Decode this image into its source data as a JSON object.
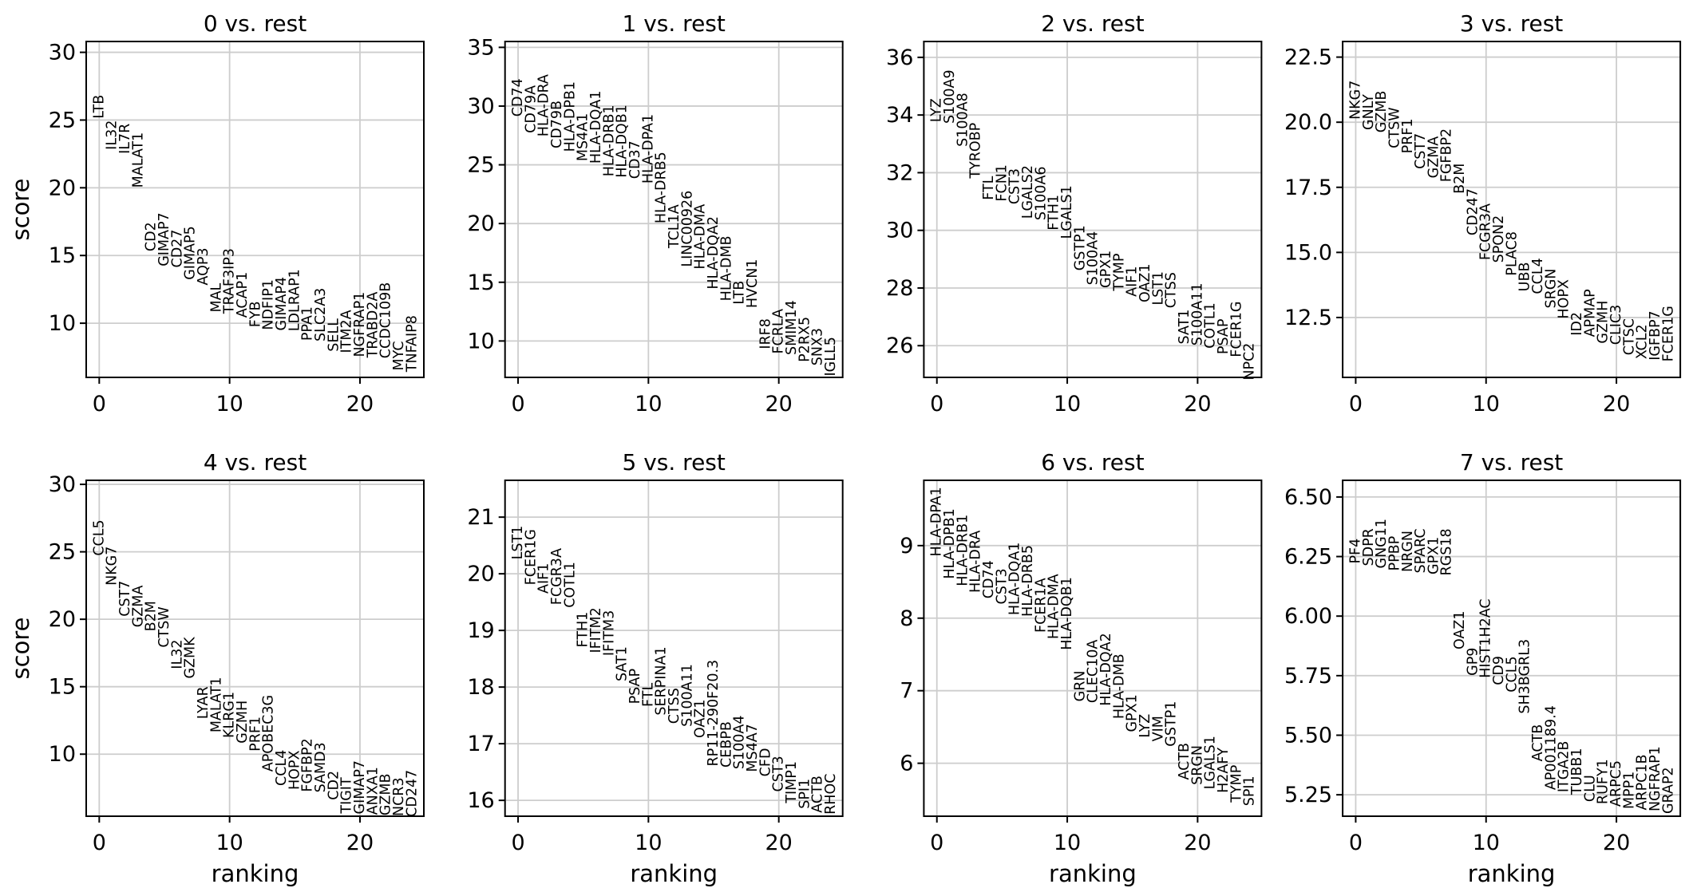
{
  "figure": {
    "xlabel": "ranking",
    "ylabel": "score",
    "background": "#ffffff",
    "grid_color": "#cdcdcd",
    "spine_color": "#000000",
    "text_color": "#000000"
  },
  "chart_data": [
    {
      "type": "scatter",
      "title": "0 vs. rest",
      "xlabel": "",
      "ylabel": "score",
      "xlim": [
        -1.0,
        24.9
      ],
      "ylim": [
        6.0,
        30.8
      ],
      "xticks": [
        0,
        10,
        20
      ],
      "xtick_labels": [
        "0",
        "10",
        "20"
      ],
      "ytick_values": [
        10,
        15,
        20,
        25,
        30
      ],
      "ytick_labels": [
        "10",
        "15",
        "20",
        "25",
        "30"
      ],
      "grid": true,
      "x_is_ranking": true,
      "gene_names": [
        "LTB",
        "IL32",
        "IL7R",
        "MALAT1",
        "CD2",
        "GIMAP7",
        "CD27",
        "GIMAP5",
        "AQP3",
        "MAL",
        "TRAF3IP3",
        "ACAP1",
        "FYB",
        "NDFIP1",
        "GIMAP4",
        "LDLRAP1",
        "PPA1",
        "SLC2A3",
        "SELL",
        "ITM2A",
        "NGFRAP1",
        "TRABD2A",
        "CCDC109B",
        "MYC",
        "TNFAIP8"
      ],
      "scores": [
        25.1,
        22.8,
        22.5,
        20.0,
        15.3,
        14.2,
        14.1,
        13.2,
        12.8,
        10.8,
        10.7,
        10.4,
        9.7,
        9.5,
        9.45,
        9.4,
        8.7,
        8.65,
        7.9,
        7.8,
        7.5,
        7.45,
        7.4,
        6.5,
        6.4
      ]
    },
    {
      "type": "scatter",
      "title": "1 vs. rest",
      "xlabel": "",
      "ylabel": "",
      "xlim": [
        -1.0,
        24.9
      ],
      "ylim": [
        6.9,
        35.5
      ],
      "xticks": [
        0,
        10,
        20
      ],
      "xtick_labels": [
        "0",
        "10",
        "20"
      ],
      "ytick_values": [
        10,
        15,
        20,
        25,
        30,
        35
      ],
      "ytick_labels": [
        "10",
        "15",
        "20",
        "25",
        "30",
        "35"
      ],
      "grid": true,
      "x_is_ranking": true,
      "gene_names": [
        "CD74",
        "CD79A",
        "HLA-DRA",
        "CD79B",
        "HLA-DPB1",
        "MS4A1",
        "HLA-DQA1",
        "HLA-DRB1",
        "HLA-DQB1",
        "CD37",
        "HLA-DPA1",
        "HLA-DRB5",
        "TCL1A",
        "LINC00926",
        "HLA-DMA",
        "HLA-DQA2",
        "HLA-DMB",
        "LTB",
        "HVCN1",
        "IRF8",
        "FCRLA",
        "SMIM14",
        "P2RX5",
        "SNX3",
        "IGLL5"
      ],
      "scores": [
        29.1,
        27.7,
        27.4,
        26.4,
        26.1,
        25.3,
        25.1,
        24.0,
        23.9,
        23.8,
        23.4,
        20.0,
        17.9,
        16.3,
        16.1,
        14.4,
        13.4,
        13.1,
        12.8,
        9.3,
        8.9,
        8.8,
        8.2,
        7.9,
        7.0
      ]
    },
    {
      "type": "scatter",
      "title": "2 vs. rest",
      "xlabel": "",
      "ylabel": "",
      "xlim": [
        -1.0,
        24.9
      ],
      "ylim": [
        24.9,
        36.55
      ],
      "xticks": [
        0,
        10,
        20
      ],
      "xtick_labels": [
        "0",
        "10",
        "20"
      ],
      "ytick_values": [
        26,
        28,
        30,
        32,
        34,
        36
      ],
      "ytick_labels": [
        "26",
        "28",
        "30",
        "32",
        "34",
        "36"
      ],
      "grid": true,
      "x_is_ranking": true,
      "gene_names": [
        "LYZ",
        "S100A9",
        "S100A8",
        "TYROBP",
        "FTL",
        "FCN1",
        "CST3",
        "LGALS2",
        "S100A6",
        "FTH1",
        "LGALS1",
        "GSTP1",
        "S100A4",
        "GPX1",
        "TYMP",
        "AIF1",
        "OAZ1",
        "LST1",
        "CTSS",
        "SAT1",
        "S100A11",
        "COTL1",
        "PSAP",
        "FCER1G",
        "NPC2"
      ],
      "scores": [
        33.75,
        33.7,
        32.9,
        31.8,
        31.05,
        31.0,
        30.9,
        30.4,
        30.35,
        30.0,
        29.7,
        28.6,
        28.1,
        28.0,
        27.9,
        27.7,
        27.5,
        27.4,
        27.3,
        26.05,
        26.0,
        25.9,
        25.7,
        25.6,
        24.8
      ]
    },
    {
      "type": "scatter",
      "title": "3 vs. rest",
      "xlabel": "",
      "ylabel": "",
      "xlim": [
        -1.0,
        24.9
      ],
      "ylim": [
        10.2,
        23.1
      ],
      "xticks": [
        0,
        10,
        20
      ],
      "xtick_labels": [
        "0",
        "10",
        "20"
      ],
      "ytick_values": [
        12.5,
        15.0,
        17.5,
        20.0,
        22.5
      ],
      "ytick_labels": [
        "12.5",
        "15.0",
        "17.5",
        "20.0",
        "22.5"
      ],
      "grid": true,
      "x_is_ranking": true,
      "gene_names": [
        "NKG7",
        "GNLY",
        "GZMB",
        "CTSW",
        "PRF1",
        "CST7",
        "GZMA",
        "FGFBP2",
        "B2M",
        "CD247",
        "FCGR3A",
        "SPON2",
        "PLAC8",
        "UBB",
        "CCL4",
        "SRGN",
        "HOPX",
        "ID2",
        "APMAP",
        "GZMH",
        "CLIC3",
        "CTSC",
        "XCL2",
        "IGFBP7",
        "FCER1G"
      ],
      "scores": [
        20.1,
        19.7,
        19.6,
        19.0,
        18.8,
        18.2,
        17.85,
        17.7,
        17.25,
        15.65,
        14.7,
        14.6,
        14.1,
        13.5,
        13.4,
        12.85,
        12.45,
        11.8,
        11.75,
        11.5,
        11.45,
        11.05,
        10.9,
        10.85,
        10.8
      ]
    },
    {
      "type": "scatter",
      "title": "4 vs. rest",
      "xlabel": "ranking",
      "ylabel": "score",
      "xlim": [
        -1.0,
        24.9
      ],
      "ylim": [
        5.4,
        30.3
      ],
      "xticks": [
        0,
        10,
        20
      ],
      "xtick_labels": [
        "0",
        "10",
        "20"
      ],
      "ytick_values": [
        10,
        15,
        20,
        25,
        30
      ],
      "ytick_labels": [
        "10",
        "15",
        "20",
        "25",
        "30"
      ],
      "grid": true,
      "x_is_ranking": true,
      "gene_names": [
        "CCL5",
        "NKG7",
        "CST7",
        "GZMA",
        "B2M",
        "CTSW",
        "IL32",
        "GZMK",
        "LYAR",
        "MALAT1",
        "KLRG1",
        "GZMH",
        "PRF1",
        "APOBEC3G",
        "CCL4",
        "HOPX",
        "FGFBP2",
        "SAMD3",
        "CD2",
        "TIGIT",
        "GIMAP7",
        "ANXA1",
        "GZMB",
        "NCR3",
        "CD247"
      ],
      "scores": [
        24.7,
        22.5,
        20.2,
        19.4,
        19.1,
        17.9,
        16.3,
        15.6,
        12.6,
        11.6,
        11.2,
        10.8,
        10.2,
        8.7,
        7.65,
        7.35,
        7.2,
        7.15,
        6.6,
        5.6,
        5.55,
        5.5,
        5.45,
        5.4,
        5.35
      ]
    },
    {
      "type": "scatter",
      "title": "5 vs. rest",
      "xlabel": "ranking",
      "ylabel": "",
      "xlim": [
        -1.0,
        24.9
      ],
      "ylim": [
        15.72,
        21.65
      ],
      "xticks": [
        0,
        10,
        20
      ],
      "xtick_labels": [
        "0",
        "10",
        "20"
      ],
      "ytick_values": [
        16,
        17,
        18,
        19,
        20,
        21
      ],
      "ytick_labels": [
        "16",
        "17",
        "18",
        "19",
        "20",
        "21"
      ],
      "grid": true,
      "x_is_ranking": true,
      "gene_names": [
        "LST1",
        "FCER1G",
        "AIF1",
        "FCGR3A",
        "COTL1",
        "FTH1",
        "IFITM2",
        "IFITM3",
        "SAT1",
        "PSAP",
        "FTL",
        "SERPINA1",
        "CTSS",
        "S100A11",
        "OAZ1",
        "RP11-290F20.3",
        "CEBPB",
        "S100A4",
        "MS4A7",
        "CFD",
        "CST3",
        "TIMP1",
        "SPI1",
        "ACTB",
        "RHOC"
      ],
      "scores": [
        20.25,
        19.8,
        19.65,
        19.45,
        19.4,
        18.7,
        18.6,
        18.55,
        18.1,
        17.7,
        17.65,
        17.5,
        17.35,
        17.3,
        17.1,
        16.6,
        16.58,
        16.55,
        16.5,
        16.42,
        16.15,
        15.95,
        15.85,
        15.78,
        15.75
      ]
    },
    {
      "type": "scatter",
      "title": "6 vs. rest",
      "xlabel": "ranking",
      "ylabel": "",
      "xlim": [
        -1.0,
        24.9
      ],
      "ylim": [
        5.27,
        9.9
      ],
      "xticks": [
        0,
        10,
        20
      ],
      "xtick_labels": [
        "0",
        "10",
        "20"
      ],
      "ytick_values": [
        6,
        7,
        8,
        9
      ],
      "ytick_labels": [
        "6",
        "7",
        "8",
        "9"
      ],
      "grid": true,
      "x_is_ranking": true,
      "gene_names": [
        "HLA-DPA1",
        "HLA-DPB1",
        "HLA-DRB1",
        "HLA-DRA",
        "CD74",
        "CST3",
        "HLA-DQA1",
        "HLA-DRB5",
        "FCER1A",
        "HLA-DMA",
        "HLA-DQB1",
        "GRN",
        "CLEC10A",
        "HLA-DQA2",
        "HLA-DMB",
        "GPX1",
        "LYZ",
        "VIM",
        "GSTP1",
        "ACTB",
        "SRGN",
        "LGALS1",
        "H2AFY",
        "TYMP",
        "SPI1"
      ],
      "scores": [
        8.85,
        8.54,
        8.44,
        8.35,
        8.27,
        8.19,
        8.04,
        8.02,
        7.8,
        7.71,
        7.56,
        6.85,
        6.83,
        6.79,
        6.61,
        6.43,
        6.35,
        6.3,
        6.23,
        5.77,
        5.7,
        5.64,
        5.59,
        5.46,
        5.41
      ]
    },
    {
      "type": "scatter",
      "title": "7 vs. rest",
      "xlabel": "ranking",
      "ylabel": "",
      "xlim": [
        -1.0,
        24.9
      ],
      "ylim": [
        5.16,
        6.57
      ],
      "xticks": [
        0,
        10,
        20
      ],
      "xtick_labels": [
        "0",
        "10",
        "20"
      ],
      "ytick_values": [
        5.25,
        5.5,
        5.75,
        6.0,
        6.25,
        6.5
      ],
      "ytick_labels": [
        "5.25",
        "5.50",
        "5.75",
        "6.00",
        "6.25",
        "6.50"
      ],
      "grid": true,
      "x_is_ranking": true,
      "gene_names": [
        "PF4",
        "SDPR",
        "GNG11",
        "PPBP",
        "NRGN",
        "SPARC",
        "GPX1",
        "RGS18",
        "OAZ1",
        "GP9",
        "HIST1H2AC",
        "CD9",
        "CCL5",
        "SH3BGRL3",
        "ACTB",
        "AP001189.4",
        "ITGA2B",
        "TUBB1",
        "CLU",
        "RUFY1",
        "ARPC5",
        "MPP1",
        "ARPC1B",
        "NGFRAP1",
        "GRAP2"
      ],
      "scores": [
        6.22,
        6.21,
        6.2,
        6.19,
        6.185,
        6.18,
        6.175,
        6.17,
        5.86,
        5.75,
        5.74,
        5.71,
        5.68,
        5.59,
        5.39,
        5.27,
        5.26,
        5.25,
        5.22,
        5.21,
        5.2,
        5.19,
        5.185,
        5.18,
        5.17
      ]
    }
  ]
}
